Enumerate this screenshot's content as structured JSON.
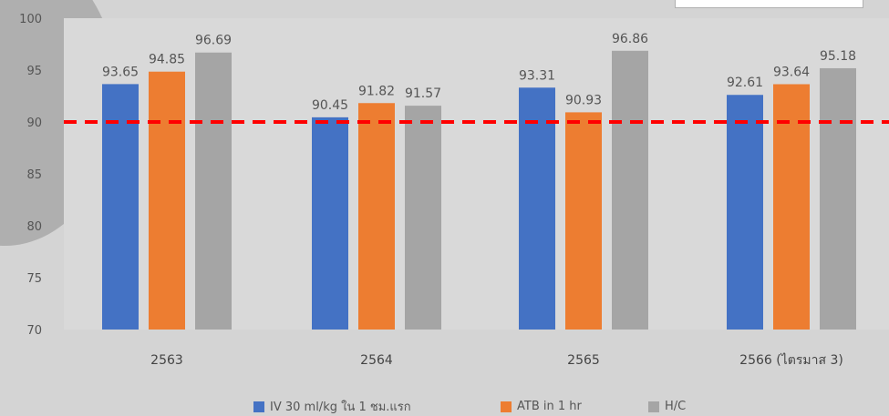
{
  "chart_data": {
    "type": "bar",
    "categories": [
      "2563",
      "2564",
      "2565",
      "2566 (ไตรมาส 3)"
    ],
    "series": [
      {
        "name": "IV 30 ml/kg ใน 1 ชม.แรก",
        "values": [
          93.65,
          90.45,
          93.31,
          92.61
        ],
        "color": "#4472c4"
      },
      {
        "name": "ATB in 1 hr",
        "values": [
          94.85,
          91.82,
          90.93,
          93.64
        ],
        "color": "#ed7d31"
      },
      {
        "name": "H/C",
        "values": [
          96.69,
          91.57,
          96.86,
          95.18
        ],
        "color": "#a5a5a5"
      }
    ],
    "data_labels": [
      [
        "93.65",
        "90.45",
        "93.31",
        "92.61"
      ],
      [
        "94.85",
        "91.82",
        "90.93",
        "93.64"
      ],
      [
        "96.69",
        "91.57",
        "96.86",
        "95.18"
      ]
    ],
    "y_ticks": [
      "100",
      "95",
      "90",
      "85",
      "80",
      "75",
      "70"
    ],
    "ylim": [
      70,
      100
    ],
    "target_line": {
      "value": 90,
      "color": "#ff0000",
      "style": "dashed"
    },
    "legend": {
      "position": "bottom"
    },
    "grid": false
  }
}
